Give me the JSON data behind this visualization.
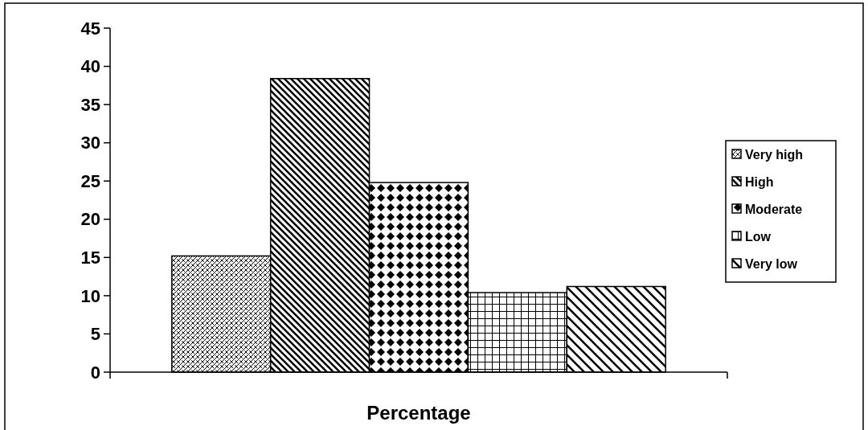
{
  "chart_data": {
    "type": "bar",
    "xlabel": "Percentage",
    "categories": [
      null
    ],
    "series": [
      {
        "name": "Very high",
        "color": "#000000",
        "values": [
          15.2
        ]
      },
      {
        "name": "High",
        "color": "#000000",
        "values": [
          38.4
        ]
      },
      {
        "name": "Moderate",
        "color": "#000000",
        "values": [
          24.8
        ]
      },
      {
        "name": "Low",
        "color": "#000000",
        "values": [
          10.4
        ]
      },
      {
        "name": "Very low",
        "color": "#000000",
        "values": [
          11.2
        ]
      }
    ],
    "ylim": [
      0,
      45
    ],
    "yticks": [
      0,
      5,
      10,
      15,
      20,
      25,
      30,
      35,
      40,
      45
    ],
    "grid": false,
    "legend": "right"
  }
}
